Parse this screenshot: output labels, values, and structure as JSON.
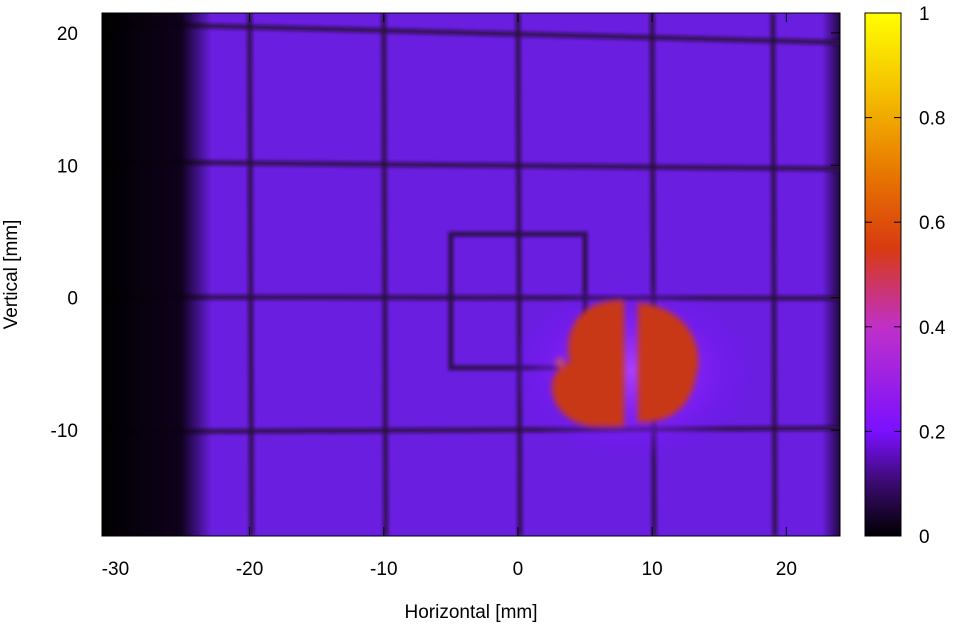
{
  "chart_data": {
    "type": "heatmap",
    "xlabel": "Horizontal [mm]",
    "ylabel": "Vertical [mm]",
    "xlim": [
      -31,
      24
    ],
    "ylim": [
      -18,
      21.5
    ],
    "x_ticks": [
      -30,
      -20,
      -10,
      0,
      10,
      20
    ],
    "x_tick_labels": [
      "-30",
      "-20",
      "-10",
      "0",
      "10",
      "20"
    ],
    "y_ticks": [
      -10,
      0,
      10,
      20
    ],
    "y_tick_labels": [
      "-10",
      "0",
      "10",
      "20"
    ],
    "colorbar": {
      "range": [
        0,
        1
      ],
      "ticks": [
        0,
        0.2,
        0.4,
        0.6,
        0.8,
        1
      ],
      "tick_labels": [
        "0",
        "0.2",
        "0.4",
        "0.6",
        "0.8",
        "1"
      ],
      "colormap": [
        "#000000",
        "#3a0a6e",
        "#7a10ff",
        "#c030c8",
        "#d83a10",
        "#e87a00",
        "#f5c000",
        "#ffff00"
      ]
    },
    "background_level": 0.15,
    "grid_wires_vertical_x": [
      -20,
      -10,
      0,
      10,
      19
    ],
    "grid_wires_horizontal_y": [
      20,
      10,
      0,
      -10
    ],
    "dark_edge_left_x": -24,
    "square_frame": {
      "x": [
        -5,
        5
      ],
      "y": [
        -5.3,
        4.8
      ]
    },
    "hot_spot": {
      "center": [
        8.5,
        -5.5
      ],
      "peak_level": 0.55
    }
  }
}
